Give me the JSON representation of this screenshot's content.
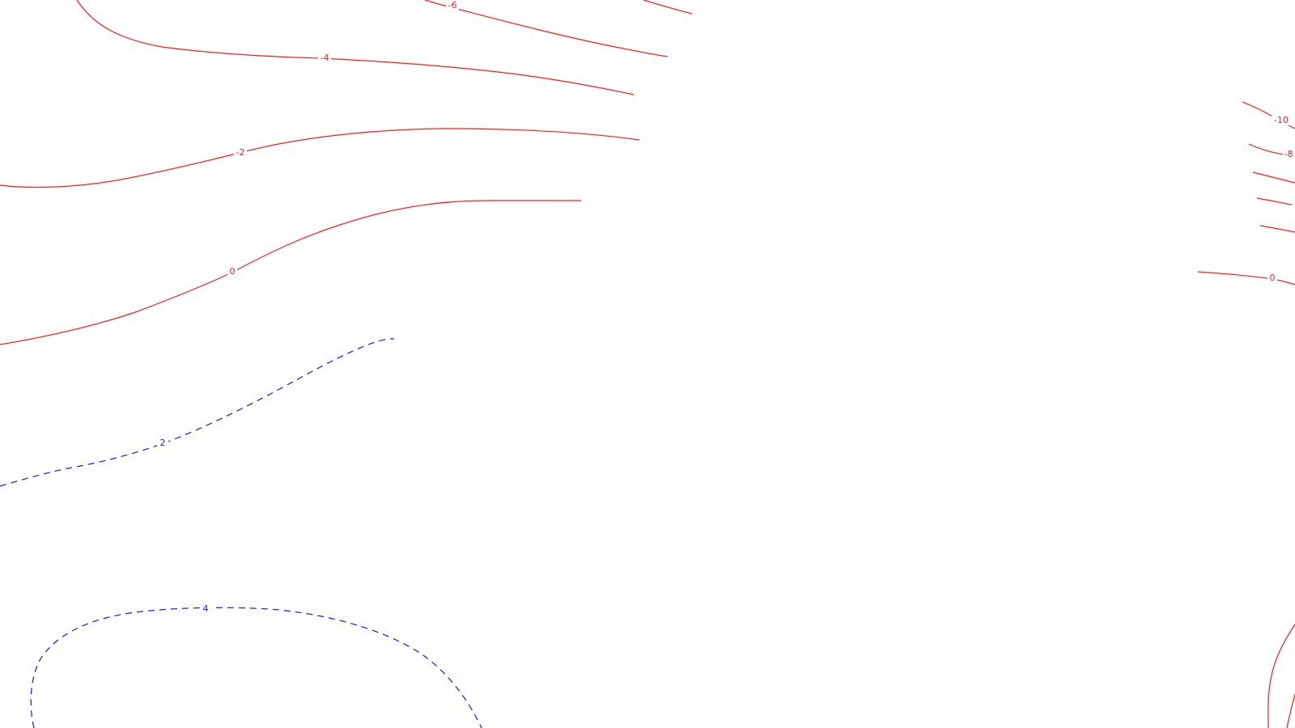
{
  "map": {
    "colors": {
      "negative": "#ff1a1a",
      "positive": "#0a1aff",
      "background": "#ffffff"
    },
    "contour_labels": {
      "neg6": "-6",
      "neg4": "-4",
      "neg2": "-2",
      "zero_left": "0",
      "pos2": "2",
      "pos4": "4",
      "neg10": "-10",
      "neg8": "-8",
      "zero_right": "0"
    }
  }
}
